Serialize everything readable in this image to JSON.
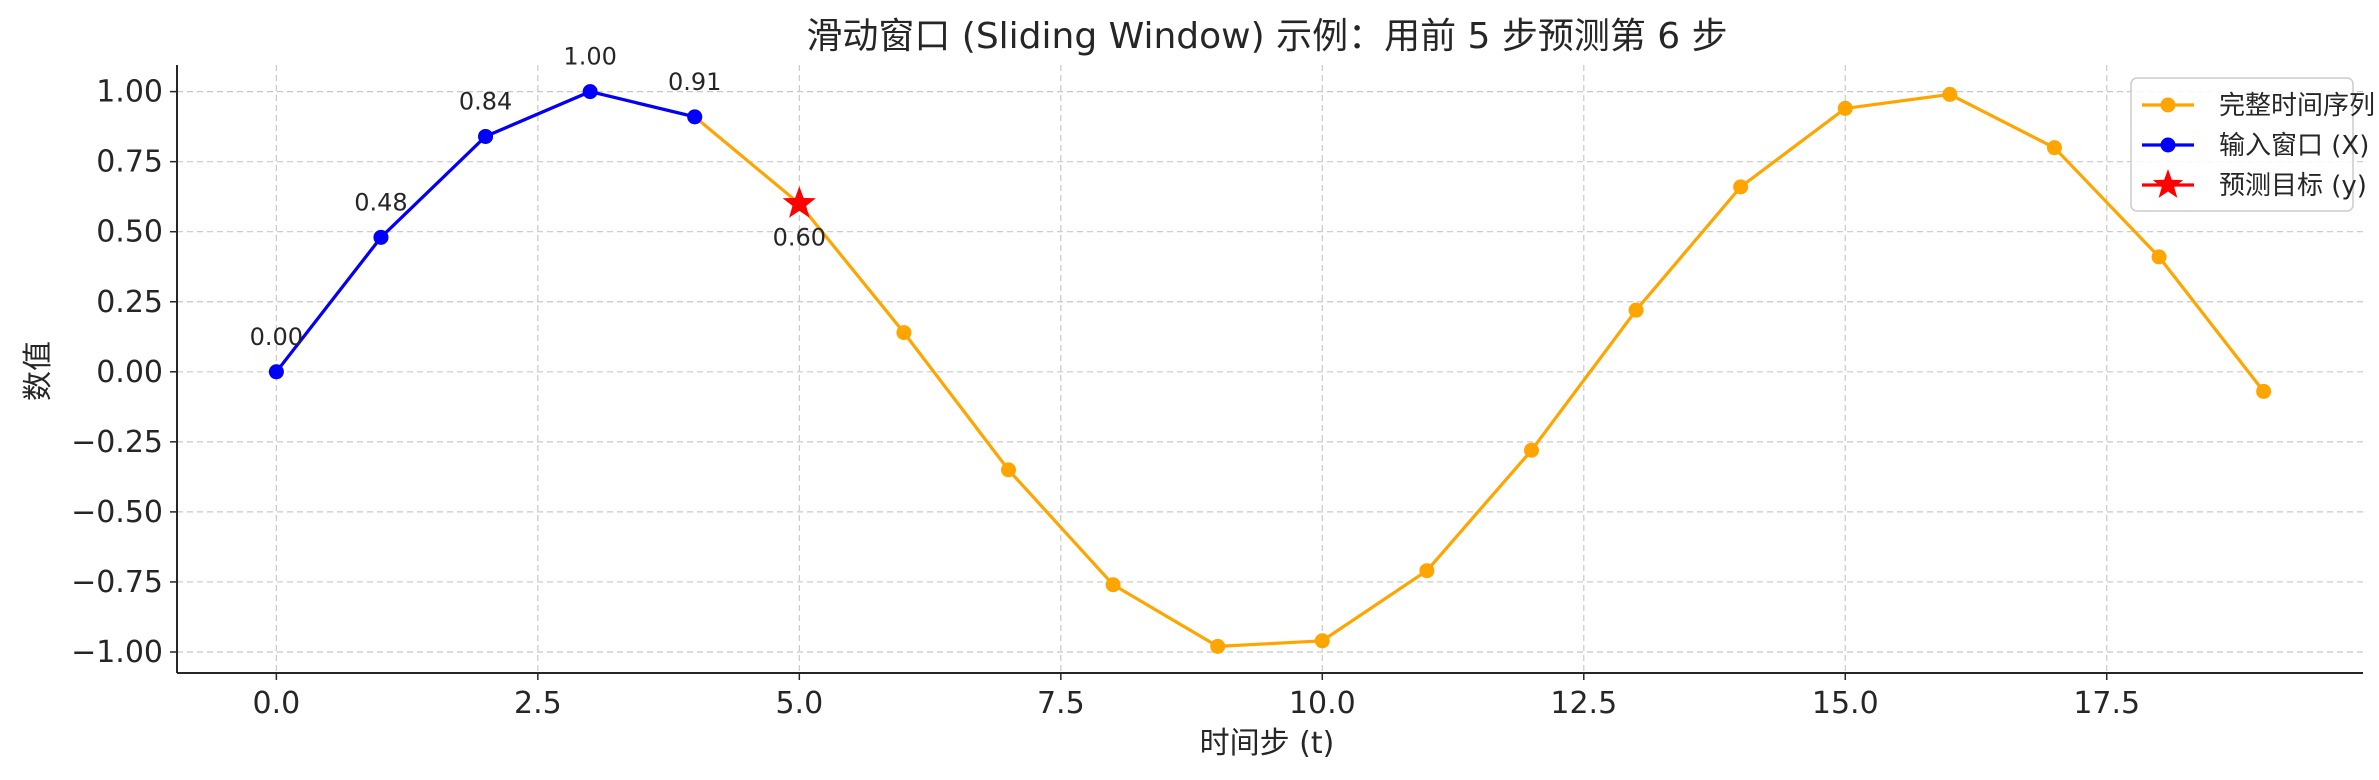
{
  "chart_data": {
    "type": "line",
    "title": "滑动窗口 (Sliding Window) 示例：用前 5 步预测第 6 步",
    "xlabel": "时间步 (t)",
    "ylabel": "数值",
    "xlim": [
      -0.95,
      19.95
    ],
    "ylim": [
      -1.075,
      1.095
    ],
    "xticks": [
      0,
      2.5,
      5,
      7.5,
      10,
      12.5,
      15,
      17.5
    ],
    "xtick_labels": [
      "0.0",
      "2.5",
      "5.0",
      "7.5",
      "10.0",
      "12.5",
      "15.0",
      "17.5"
    ],
    "yticks": [
      1,
      0.75,
      0.5,
      0.25,
      0,
      -0.25,
      -0.5,
      -0.75,
      -1
    ],
    "ytick_labels": [
      "1.00",
      "0.75",
      "0.50",
      "0.25",
      "0.00",
      "−0.25",
      "−0.50",
      "−0.75",
      "−1.00"
    ],
    "grid": true,
    "legend_position": "top-right",
    "series": [
      {
        "name": "完整时间序列",
        "color": "#FFA500",
        "marker": "circle",
        "x": [
          0,
          1,
          2,
          3,
          4,
          5,
          6,
          7,
          8,
          9,
          10,
          11,
          12,
          13,
          14,
          15,
          16,
          17,
          18,
          19
        ],
        "y": [
          0.0,
          0.48,
          0.84,
          1.0,
          0.91,
          0.6,
          0.14,
          -0.35,
          -0.76,
          -0.98,
          -0.96,
          -0.71,
          -0.28,
          0.22,
          0.66,
          0.94,
          0.99,
          0.8,
          0.41,
          -0.07
        ]
      },
      {
        "name": "输入窗口 (X)",
        "color": "#0000FF",
        "marker": "circle",
        "x": [
          0,
          1,
          2,
          3,
          4
        ],
        "y": [
          0.0,
          0.48,
          0.84,
          1.0,
          0.91
        ],
        "labels": [
          "0.00",
          "0.48",
          "0.84",
          "1.00",
          "0.91"
        ]
      },
      {
        "name": "预测目标 (y)",
        "color": "#FF0000",
        "marker": "star",
        "x": [
          5
        ],
        "y": [
          0.6
        ],
        "labels": [
          "0.60"
        ]
      }
    ]
  }
}
